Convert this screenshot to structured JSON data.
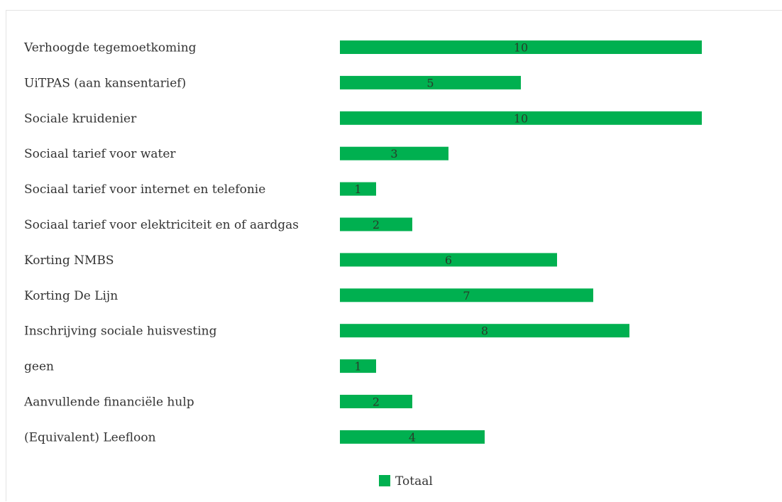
{
  "chart_data": {
    "type": "bar",
    "orientation": "horizontal",
    "categories": [
      "Verhoogde tegemoetkoming",
      "UiTPAS (aan kansentarief)",
      "Sociale kruidenier",
      "Sociaal tarief voor water",
      "Sociaal tarief voor internet en telefonie",
      "Sociaal tarief voor elektriciteit en of aardgas",
      "Korting NMBS",
      "Korting De Lijn",
      "Inschrijving sociale huisvesting",
      "geen",
      "Aanvullende financiële hulp",
      "(Equivalent) Leefloon"
    ],
    "series": [
      {
        "name": "Totaal",
        "values": [
          10,
          5,
          10,
          3,
          1,
          2,
          6,
          7,
          8,
          1,
          2,
          4
        ],
        "color": "#00b050"
      }
    ],
    "xlim": [
      0,
      10
    ],
    "grid": false,
    "data_labels": true,
    "legend_position": "bottom"
  }
}
